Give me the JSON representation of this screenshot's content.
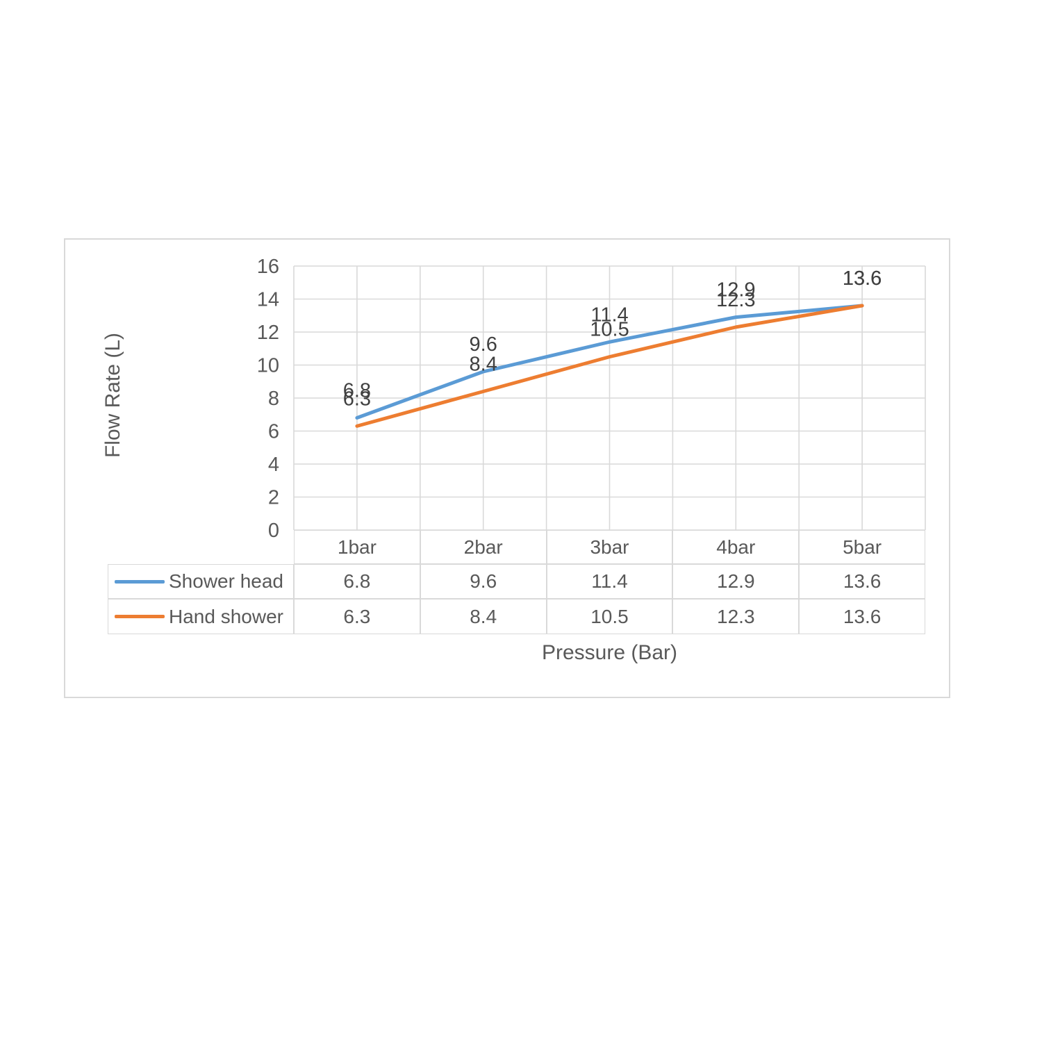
{
  "chart_data": {
    "type": "line",
    "categories": [
      "1bar",
      "2bar",
      "3bar",
      "4bar",
      "5bar"
    ],
    "series": [
      {
        "name": "Shower head",
        "color": "#5B9BD5",
        "values": [
          6.8,
          9.6,
          11.4,
          12.9,
          13.6
        ]
      },
      {
        "name": "Hand shower",
        "color": "#ED7D31",
        "values": [
          6.3,
          8.4,
          10.5,
          12.3,
          13.6
        ]
      }
    ],
    "title": "",
    "xlabel": "Pressure (Bar)",
    "ylabel": "Flow Rate (L)",
    "ylim": [
      0,
      16
    ],
    "y_tick_step": 2,
    "y_ticks": [
      0,
      2,
      4,
      6,
      8,
      10,
      12,
      14,
      16
    ],
    "grid": true,
    "minor_vertical_gridlines": true,
    "data_labels": true,
    "legend_position": "data-table-left"
  },
  "colors": {
    "grid": "#D9D9D9",
    "text": "#595959",
    "data_label": "#404040",
    "series_blue": "#5B9BD5",
    "series_orange": "#ED7D31",
    "background": "#FFFFFF"
  }
}
